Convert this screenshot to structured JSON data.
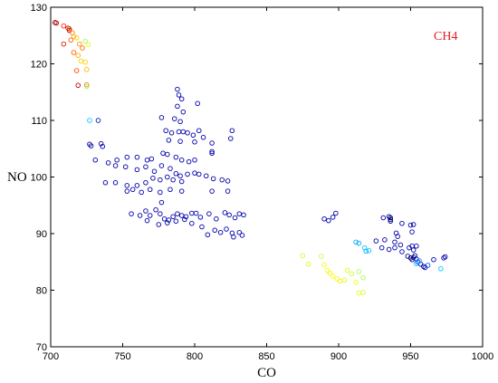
{
  "chart_data": {
    "type": "scatter",
    "title": "",
    "xlabel": "CO",
    "ylabel": "NO",
    "xlim": [
      700,
      1000
    ],
    "ylim": [
      70,
      130
    ],
    "xticks": [
      700,
      750,
      800,
      850,
      900,
      950,
      1000
    ],
    "yticks": [
      70,
      80,
      90,
      100,
      110,
      120,
      130
    ],
    "grid": false,
    "marker": "open-circle",
    "colormap": "jet",
    "annotation": {
      "text": "CH4",
      "color": "#dd2222"
    },
    "points": [
      [
        703,
        127.3,
        "#8b0000"
      ],
      [
        704,
        127.2,
        "#c00000"
      ],
      [
        709,
        126.7,
        "#ff2000"
      ],
      [
        712,
        126.3,
        "#cc0000"
      ],
      [
        713,
        125.9,
        "#8b0000"
      ],
      [
        713,
        126.2,
        "#ff4000"
      ],
      [
        715,
        125.5,
        "#ff8000"
      ],
      [
        716,
        124.8,
        "#ffaa00"
      ],
      [
        714,
        124.2,
        "#ff6000"
      ],
      [
        718,
        124.6,
        "#ffcc00"
      ],
      [
        720,
        123.5,
        "#ff9000"
      ],
      [
        722,
        122.8,
        "#ff7000"
      ],
      [
        724,
        124.0,
        "#aaff50"
      ],
      [
        726,
        123.4,
        "#ddff20"
      ],
      [
        709,
        123.5,
        "#dd2000"
      ],
      [
        716,
        122.0,
        "#ff6000"
      ],
      [
        719,
        121.5,
        "#ffaa00"
      ],
      [
        721,
        120.5,
        "#ffd000"
      ],
      [
        724,
        120.3,
        "#ffcc00"
      ],
      [
        725,
        119.0,
        "#ffbb00"
      ],
      [
        718,
        118.8,
        "#ff5000"
      ],
      [
        719,
        116.2,
        "#cc0000"
      ],
      [
        725,
        116.0,
        "#88ff70"
      ],
      [
        725,
        116.3,
        "#ff8000"
      ],
      [
        727,
        110.0,
        "#00ccff"
      ],
      [
        733,
        110.0,
        "#0020aa"
      ],
      [
        788,
        115.5,
        "#0000aa"
      ],
      [
        789,
        114.5,
        "#0000aa"
      ],
      [
        791,
        113.8,
        "#0000aa"
      ],
      [
        788,
        112.5,
        "#0000aa"
      ],
      [
        802,
        113.0,
        "#0000aa"
      ],
      [
        792,
        111.5,
        "#0000aa"
      ],
      [
        777,
        110.5,
        "#0000aa"
      ],
      [
        786,
        110.3,
        "#0000aa"
      ],
      [
        790,
        109.8,
        "#0000aa"
      ],
      [
        780,
        108.2,
        "#0000aa"
      ],
      [
        784,
        107.8,
        "#0000aa"
      ],
      [
        789,
        108.0,
        "#0000aa"
      ],
      [
        792,
        108.0,
        "#0000aa"
      ],
      [
        795,
        107.8,
        "#0000aa"
      ],
      [
        799,
        107.4,
        "#0000aa"
      ],
      [
        803,
        108.2,
        "#0000aa"
      ],
      [
        806,
        107.0,
        "#0000aa"
      ],
      [
        826,
        108.2,
        "#0000aa"
      ],
      [
        825,
        106.8,
        "#0000aa"
      ],
      [
        812,
        106.0,
        "#0000aa"
      ],
      [
        782,
        106.5,
        "#0000aa"
      ],
      [
        790,
        106.3,
        "#0000aa"
      ],
      [
        800,
        106.2,
        "#0000aa"
      ],
      [
        727,
        105.8,
        "#0000aa"
      ],
      [
        728,
        105.5,
        "#0000aa"
      ],
      [
        735,
        105.9,
        "#0000aa"
      ],
      [
        736,
        105.4,
        "#0000aa"
      ],
      [
        812,
        104.5,
        "#0000aa"
      ],
      [
        812,
        104.2,
        "#0000aa"
      ],
      [
        753,
        103.5,
        "#0000aa"
      ],
      [
        760,
        103.5,
        "#0000aa"
      ],
      [
        767,
        103.0,
        "#0000aa"
      ],
      [
        770,
        103.2,
        "#0000aa"
      ],
      [
        778,
        104.2,
        "#0000aa"
      ],
      [
        781,
        104.0,
        "#0000aa"
      ],
      [
        787,
        103.5,
        "#0000aa"
      ],
      [
        791,
        103.0,
        "#0000aa"
      ],
      [
        796,
        102.7,
        "#0000aa"
      ],
      [
        800,
        103.0,
        "#0000aa"
      ],
      [
        746,
        103.0,
        "#0000aa"
      ],
      [
        740,
        102.5,
        "#0000aa"
      ],
      [
        731,
        103.0,
        "#0000aa"
      ],
      [
        745,
        102.0,
        "#0000aa"
      ],
      [
        752,
        101.8,
        "#0000aa"
      ],
      [
        760,
        101.3,
        "#0000aa"
      ],
      [
        766,
        101.8,
        "#0000aa"
      ],
      [
        772,
        101.0,
        "#0000aa"
      ],
      [
        777,
        102.0,
        "#0000aa"
      ],
      [
        783,
        101.5,
        "#0000aa"
      ],
      [
        787,
        100.6,
        "#0000aa"
      ],
      [
        790,
        100.2,
        "#0000aa"
      ],
      [
        795,
        100.5,
        "#0000aa"
      ],
      [
        800,
        100.7,
        "#0000aa"
      ],
      [
        803,
        100.5,
        "#0000aa"
      ],
      [
        808,
        100.2,
        "#0000aa"
      ],
      [
        813,
        99.7,
        "#0000aa"
      ],
      [
        819,
        99.5,
        "#0000aa"
      ],
      [
        823,
        99.3,
        "#0000aa"
      ],
      [
        738,
        99.0,
        "#0000aa"
      ],
      [
        745,
        99.0,
        "#0000aa"
      ],
      [
        753,
        98.5,
        "#0000aa"
      ],
      [
        760,
        98.5,
        "#0000aa"
      ],
      [
        766,
        99.0,
        "#0000aa"
      ],
      [
        771,
        99.8,
        "#0000aa"
      ],
      [
        776,
        99.5,
        "#0000aa"
      ],
      [
        781,
        100.0,
        "#0000aa"
      ],
      [
        785,
        99.5,
        "#0000aa"
      ],
      [
        791,
        99.2,
        "#0000aa"
      ],
      [
        753,
        97.5,
        "#0000aa"
      ],
      [
        757,
        97.8,
        "#0000aa"
      ],
      [
        763,
        97.3,
        "#0000aa"
      ],
      [
        769,
        97.8,
        "#0000aa"
      ],
      [
        776,
        97.3,
        "#0000aa"
      ],
      [
        783,
        97.8,
        "#0000aa"
      ],
      [
        791,
        97.5,
        "#0000aa"
      ],
      [
        812,
        97.5,
        "#0000aa"
      ],
      [
        823,
        97.5,
        "#0000aa"
      ],
      [
        777,
        95.5,
        "#0000aa"
      ],
      [
        756,
        93.5,
        "#0000aa"
      ],
      [
        762,
        93.2,
        "#0000aa"
      ],
      [
        766,
        94.0,
        "#0000aa"
      ],
      [
        769,
        93.2,
        "#0000aa"
      ],
      [
        773,
        94.2,
        "#0000aa"
      ],
      [
        776,
        93.5,
        "#0000aa"
      ],
      [
        779,
        92.6,
        "#0000aa"
      ],
      [
        782,
        92.4,
        "#0000aa"
      ],
      [
        785,
        93.0,
        "#0000aa"
      ],
      [
        788,
        93.5,
        "#0000aa"
      ],
      [
        791,
        93.2,
        "#0000aa"
      ],
      [
        794,
        93.0,
        "#0000aa"
      ],
      [
        798,
        93.6,
        "#0000aa"
      ],
      [
        801,
        93.6,
        "#0000aa"
      ],
      [
        804,
        92.9,
        "#0000aa"
      ],
      [
        810,
        93.5,
        "#0000aa"
      ],
      [
        815,
        92.6,
        "#0000aa"
      ],
      [
        821,
        93.7,
        "#0000aa"
      ],
      [
        824,
        93.3,
        "#0000aa"
      ],
      [
        828,
        92.8,
        "#0000aa"
      ],
      [
        831,
        93.5,
        "#0000aa"
      ],
      [
        834,
        93.3,
        "#0000aa"
      ],
      [
        767,
        92.3,
        "#0000aa"
      ],
      [
        775,
        91.6,
        "#0000aa"
      ],
      [
        781,
        91.9,
        "#0000aa"
      ],
      [
        787,
        92.2,
        "#0000aa"
      ],
      [
        793,
        92.5,
        "#0000aa"
      ],
      [
        798,
        91.8,
        "#0000aa"
      ],
      [
        805,
        91.2,
        "#0000aa"
      ],
      [
        814,
        90.6,
        "#0000aa"
      ],
      [
        818,
        90.2,
        "#0000aa"
      ],
      [
        822,
        90.8,
        "#0000aa"
      ],
      [
        826,
        90.1,
        "#0000aa"
      ],
      [
        827,
        89.4,
        "#0000aa"
      ],
      [
        831,
        90.2,
        "#0000aa"
      ],
      [
        833,
        89.7,
        "#0000aa"
      ],
      [
        809,
        89.8,
        "#0000aa"
      ],
      [
        890,
        92.6,
        "#0000aa"
      ],
      [
        896,
        92.9,
        "#0000aa"
      ],
      [
        898,
        93.6,
        "#0000aa"
      ],
      [
        893,
        92.3,
        "#0000aa"
      ],
      [
        935,
        93.0,
        "#000080"
      ],
      [
        936,
        92.8,
        "#000080"
      ],
      [
        936,
        92.5,
        "#000080"
      ],
      [
        936,
        92.2,
        "#000080"
      ],
      [
        931,
        92.8,
        "#0000aa"
      ],
      [
        944,
        91.8,
        "#0000aa"
      ],
      [
        950,
        91.5,
        "#0000aa"
      ],
      [
        952,
        91.6,
        "#0000aa"
      ],
      [
        951,
        90.3,
        "#0000aa"
      ],
      [
        940,
        90.1,
        "#0000aa"
      ],
      [
        926,
        88.7,
        "#0000aa"
      ],
      [
        932,
        88.9,
        "#0000aa"
      ],
      [
        939,
        88.5,
        "#0000aa"
      ],
      [
        941,
        89.5,
        "#0000aa"
      ],
      [
        943,
        88.0,
        "#0000aa"
      ],
      [
        939,
        87.5,
        "#0000aa"
      ],
      [
        935,
        87.2,
        "#0000aa"
      ],
      [
        930,
        87.5,
        "#0000aa"
      ],
      [
        949,
        87.5,
        "#0000aa"
      ],
      [
        951,
        87.8,
        "#0000aa"
      ],
      [
        952,
        87.1,
        "#0000aa"
      ],
      [
        954,
        87.8,
        "#0000aa"
      ],
      [
        944,
        86.8,
        "#0000aa"
      ],
      [
        948,
        86.0,
        "#000080"
      ],
      [
        950,
        85.7,
        "#000080"
      ],
      [
        951,
        85.4,
        "#000080"
      ],
      [
        952,
        85.8,
        "#000080"
      ],
      [
        953,
        86.1,
        "#000080"
      ],
      [
        954,
        85.5,
        "#0000aa"
      ],
      [
        955,
        85.0,
        "#0030ff"
      ],
      [
        957,
        84.6,
        "#0000aa"
      ],
      [
        959,
        84.2,
        "#0000aa"
      ],
      [
        960,
        84.0,
        "#0000aa"
      ],
      [
        962,
        84.4,
        "#0050ff"
      ],
      [
        966,
        85.4,
        "#0000aa"
      ],
      [
        974,
        85.9,
        "#0000aa"
      ],
      [
        973,
        85.7,
        "#0000aa"
      ],
      [
        971,
        83.8,
        "#00ccff"
      ],
      [
        954,
        84.7,
        "#00b0ff"
      ],
      [
        956,
        85.2,
        "#0090ff"
      ],
      [
        912,
        88.5,
        "#00aaff"
      ],
      [
        914,
        88.3,
        "#00aaff"
      ],
      [
        918,
        87.5,
        "#00ccff"
      ],
      [
        921,
        87.0,
        "#00ccff"
      ],
      [
        919,
        86.9,
        "#00aaff"
      ],
      [
        875,
        86.1,
        "#ccff30"
      ],
      [
        879,
        84.6,
        "#ddff20"
      ],
      [
        888,
        86.0,
        "#bbff50"
      ],
      [
        890,
        84.5,
        "#eeff10"
      ],
      [
        892,
        83.5,
        "#eeff00"
      ],
      [
        894,
        83.0,
        "#ffee00"
      ],
      [
        896,
        82.5,
        "#ffff00"
      ],
      [
        899,
        82.0,
        "#eeff00"
      ],
      [
        901,
        81.6,
        "#ffee00"
      ],
      [
        904,
        81.8,
        "#ddff20"
      ],
      [
        906,
        83.5,
        "#ddff20"
      ],
      [
        909,
        82.9,
        "#ccff30"
      ],
      [
        912,
        81.4,
        "#eeff10"
      ],
      [
        914,
        83.3,
        "#aaff50"
      ],
      [
        917,
        82.2,
        "#aaff50"
      ],
      [
        914,
        79.5,
        "#ddff20"
      ],
      [
        917,
        79.6,
        "#ccff30"
      ]
    ]
  }
}
